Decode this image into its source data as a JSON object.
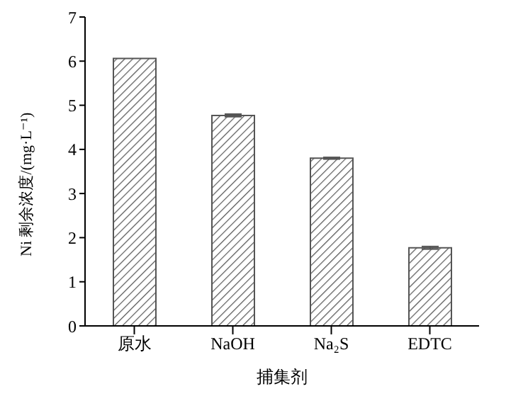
{
  "chart_data": {
    "type": "bar",
    "xlabel": "捕集剂",
    "ylabel": "Ni 剩余浓度/(mg·L⁻¹)",
    "categories": [
      "原水",
      "NaOH",
      "Na₂S",
      "EDTC"
    ],
    "values": [
      6.06,
      4.77,
      3.8,
      1.77
    ],
    "errors": [
      null,
      0.03,
      0.02,
      0.03
    ],
    "color": "#555555",
    "ylim": [
      0,
      7
    ],
    "yticks": [
      0,
      1,
      2,
      3,
      4,
      5,
      6,
      7
    ],
    "grid": false
  }
}
